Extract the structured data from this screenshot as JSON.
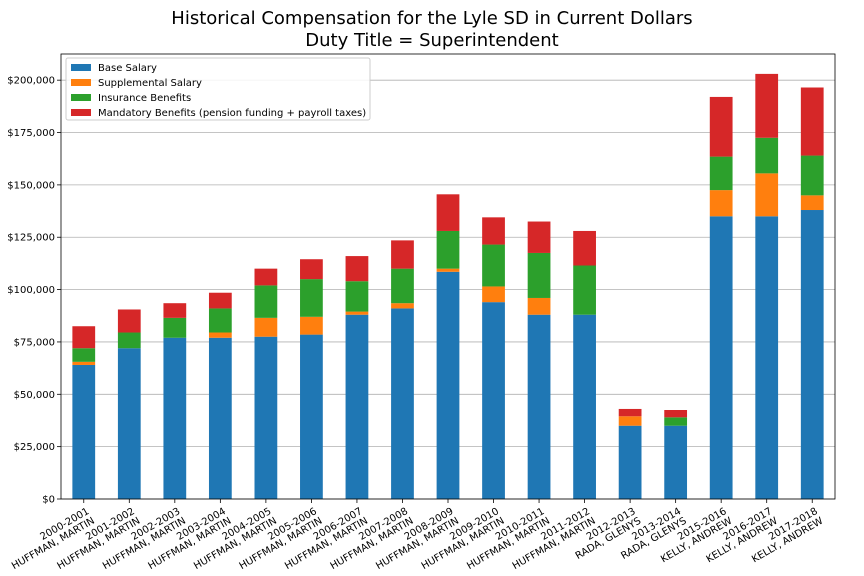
{
  "chart_data": {
    "type": "bar",
    "stacked": true,
    "title": "Historical Compensation for the Lyle SD in Current Dollars",
    "subtitle": "Duty Title = Superintendent",
    "xlabel": "",
    "ylabel": "",
    "ylim": [
      0,
      212500
    ],
    "yticks": [
      0,
      25000,
      50000,
      75000,
      100000,
      125000,
      150000,
      175000,
      200000
    ],
    "ytick_labels": [
      "$0",
      "$25,000",
      "$50,000",
      "$75,000",
      "$100,000",
      "$125,000",
      "$150,000",
      "$175,000",
      "$200,000"
    ],
    "grid": "horizontal",
    "legend_position": "top-left",
    "categories": [
      [
        "2000-2001",
        "HUFFMAN, MARTIN"
      ],
      [
        "2001-2002",
        "HUFFMAN, MARTIN"
      ],
      [
        "2002-2003",
        "HUFFMAN, MARTIN"
      ],
      [
        "2003-2004",
        "HUFFMAN, MARTIN"
      ],
      [
        "2004-2005",
        "HUFFMAN, MARTIN"
      ],
      [
        "2005-2006",
        "HUFFMAN, MARTIN"
      ],
      [
        "2006-2007",
        "HUFFMAN, MARTIN"
      ],
      [
        "2007-2008",
        "HUFFMAN, MARTIN"
      ],
      [
        "2008-2009",
        "HUFFMAN, MARTIN"
      ],
      [
        "2009-2010",
        "HUFFMAN, MARTIN"
      ],
      [
        "2010-2011",
        "HUFFMAN, MARTIN"
      ],
      [
        "2011-2012",
        "HUFFMAN, MARTIN"
      ],
      [
        "2012-2013",
        "RADA, GLENYS"
      ],
      [
        "2013-2014",
        "RADA, GLENYS"
      ],
      [
        "2015-2016",
        "KELLY, ANDREW"
      ],
      [
        "2016-2017",
        "KELLY, ANDREW"
      ],
      [
        "2017-2018",
        "KELLY, ANDREW"
      ]
    ],
    "series": [
      {
        "name": "Base Salary",
        "color": "#1f77b4",
        "values": [
          64000,
          72000,
          77000,
          77000,
          77500,
          78500,
          88000,
          91000,
          108500,
          94000,
          88000,
          88000,
          35000,
          35000,
          135000,
          135000,
          138000
        ]
      },
      {
        "name": "Supplemental Salary",
        "color": "#ff7f0e",
        "values": [
          1500,
          0,
          0,
          2500,
          9000,
          8500,
          1500,
          2500,
          1500,
          7500,
          8000,
          0,
          4500,
          0,
          12500,
          20500,
          7000
        ]
      },
      {
        "name": "Insurance Benefits",
        "color": "#2ca02c",
        "values": [
          6500,
          7500,
          9500,
          11500,
          15500,
          18000,
          14500,
          16500,
          18000,
          20000,
          21500,
          23500,
          0,
          4000,
          16000,
          17000,
          19000
        ]
      },
      {
        "name": "Mandatory Benefits (pension funding + payroll taxes)",
        "color": "#d62728",
        "values": [
          10500,
          11000,
          7000,
          7500,
          8000,
          9500,
          12000,
          13500,
          17500,
          13000,
          15000,
          16500,
          3500,
          3500,
          28500,
          30500,
          32500
        ]
      }
    ]
  }
}
